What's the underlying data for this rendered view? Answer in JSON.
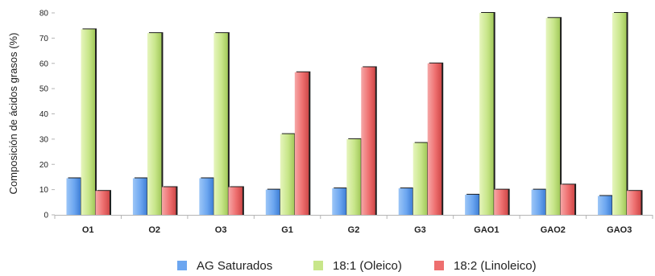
{
  "chart_data": {
    "type": "bar",
    "ylabel": "Composición de ácidos grasos (%)",
    "xlabel": "",
    "ylim": [
      0,
      80
    ],
    "yticks": [
      0,
      10,
      20,
      30,
      40,
      50,
      60,
      70,
      80
    ],
    "grid": false,
    "legend_position": "bottom",
    "categories": [
      "O1",
      "O2",
      "O3",
      "G1",
      "G2",
      "G3",
      "GAO1",
      "GAO2",
      "GAO3"
    ],
    "series": [
      {
        "name": "AG Saturados",
        "color": "#6ca6f0",
        "values": [
          14.5,
          14.5,
          14.5,
          10,
          10.5,
          10.5,
          8,
          10,
          7.5
        ]
      },
      {
        "name": "18:1 (Oleico)",
        "color": "#c8e68a",
        "values": [
          73.5,
          72,
          72,
          32,
          30,
          28.5,
          80,
          78,
          80
        ]
      },
      {
        "name": "18:2 (Linoleico)",
        "color": "#ee6f6f",
        "values": [
          9.5,
          11,
          11,
          56.5,
          58.5,
          60,
          10,
          12,
          9.5
        ]
      }
    ]
  }
}
